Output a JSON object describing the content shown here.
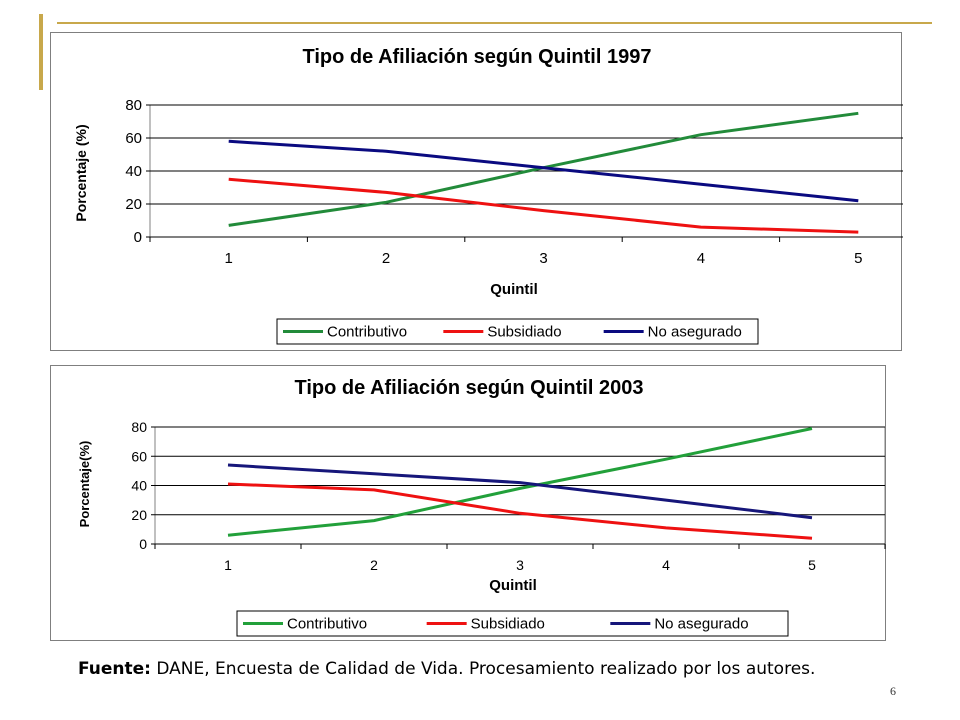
{
  "source": {
    "label": "Fuente:",
    "text": "DANE, Encuesta de Calidad de Vida. Procesamiento realizado por los autores."
  },
  "page_number": "6",
  "colors": {
    "decor_gold": "#c8a84b",
    "grid": "#000000",
    "plot_border": "#808080"
  },
  "chart_data": [
    {
      "type": "line",
      "title": "Tipo de Afiliación según Quintil 1997",
      "xlabel": "Quintil",
      "ylabel": "Porcentaje (%)",
      "categories": [
        "1",
        "2",
        "3",
        "4",
        "5"
      ],
      "ylim": [
        0,
        80
      ],
      "yticks": [
        0,
        20,
        40,
        60,
        80
      ],
      "grid": true,
      "legend": "bottom",
      "series": [
        {
          "name": "Contributivo",
          "color": "#228b3a",
          "values": [
            7,
            21,
            42,
            62,
            75
          ]
        },
        {
          "name": "Subsidiado",
          "color": "#ee1111",
          "values": [
            35,
            27,
            16,
            6,
            3
          ]
        },
        {
          "name": "No asegurado",
          "color": "#0a0a80",
          "values": [
            58,
            52,
            42,
            32,
            22
          ]
        }
      ]
    },
    {
      "type": "line",
      "title": "Tipo de Afiliación según Quintil 2003",
      "xlabel": "Quintil",
      "ylabel": "Porcentaje(%)",
      "categories": [
        "1",
        "2",
        "3",
        "4",
        "5"
      ],
      "ylim": [
        0,
        80
      ],
      "yticks": [
        0,
        20,
        40,
        60,
        80
      ],
      "grid": true,
      "legend": "bottom",
      "series": [
        {
          "name": "Contributivo",
          "color": "#22a03a",
          "values": [
            6,
            16,
            38,
            58,
            79
          ]
        },
        {
          "name": "Subsidiado",
          "color": "#ee1111",
          "values": [
            41,
            37,
            21,
            11,
            4
          ]
        },
        {
          "name": "No asegurado",
          "color": "#16167a",
          "values": [
            54,
            48,
            42,
            30,
            18
          ]
        }
      ]
    }
  ]
}
